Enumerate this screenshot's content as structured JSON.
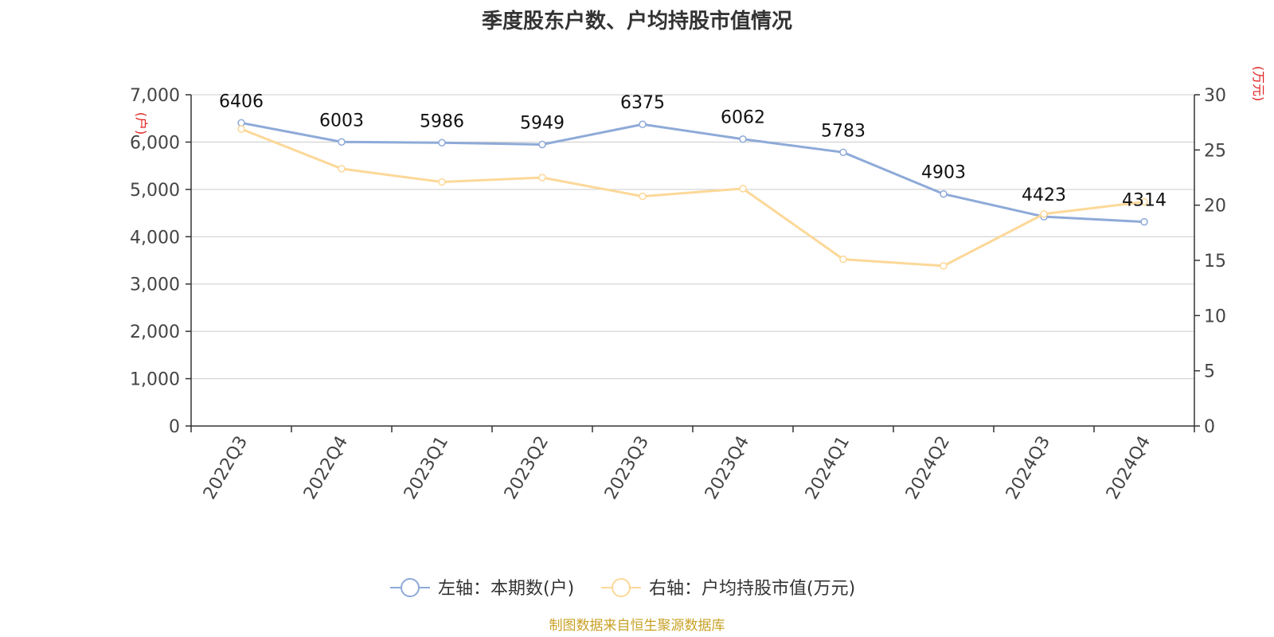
{
  "chart_data": {
    "type": "line",
    "title": "季度股东户数、户均持股市值情况",
    "categories": [
      "2022Q3",
      "2022Q4",
      "2023Q1",
      "2023Q2",
      "2023Q3",
      "2023Q4",
      "2024Q1",
      "2024Q2",
      "2024Q3",
      "2024Q4"
    ],
    "series": [
      {
        "name": "左轴：本期数(户)",
        "axis": "left",
        "color": "#8eaad8",
        "values": [
          6406,
          6003,
          5986,
          5949,
          6375,
          6062,
          5783,
          4903,
          4423,
          4314
        ],
        "labels": [
          "6406",
          "6003",
          "5986",
          "5949",
          "6375",
          "6062",
          "5783",
          "4903",
          "4423",
          "4314"
        ]
      },
      {
        "name": "右轴：户均持股市值(万元)",
        "axis": "right",
        "color": "#fcd898",
        "values": [
          26.9,
          23.3,
          22.1,
          22.5,
          20.8,
          21.5,
          15.1,
          14.5,
          19.2,
          20.3
        ]
      }
    ],
    "left_axis": {
      "unit": "(户)",
      "ylim": [
        0,
        7000
      ],
      "ticks": [
        0,
        1000,
        2000,
        3000,
        4000,
        5000,
        6000,
        7000
      ],
      "tick_labels": [
        "0",
        "1,000",
        "2,000",
        "3,000",
        "4,000",
        "5,000",
        "6,000",
        "7,000"
      ]
    },
    "right_axis": {
      "unit": "(万元)",
      "ylim": [
        0,
        30
      ],
      "ticks": [
        0,
        5,
        10,
        15,
        20,
        25,
        30
      ],
      "tick_labels": [
        "0",
        "5",
        "10",
        "15",
        "20",
        "25",
        "30"
      ]
    },
    "grid": true,
    "legend_position": "bottom"
  },
  "footer": "制图数据来自恒生聚源数据库"
}
